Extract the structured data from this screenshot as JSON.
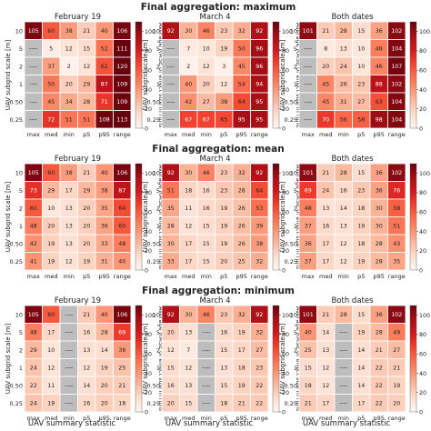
{
  "row_titles": [
    "Final aggregation: maximum",
    "Final aggregation: mean",
    "Final aggregation: minimum"
  ],
  "panel_titles": [
    "February 19",
    "March 4",
    "Both dates"
  ],
  "y_axis_label": "UAV subgrid scale [m]",
  "x_axis_label": "UAV summary statistic",
  "colorbar_label": "Average RMSE of effect size in runs",
  "colorbar_ticks": [
    "0",
    "20",
    "40",
    "60",
    "80",
    "100"
  ],
  "colors": {
    "low": "#fff5f0",
    "high": "#67000d",
    "missing": "#bdbdbd"
  },
  "chart_data": {
    "type": "heatmap",
    "x": [
      "max",
      "med",
      "min",
      "p5",
      "p95",
      "range"
    ],
    "y": [
      "10",
      "5",
      "2",
      "1",
      "0.50",
      "0.25"
    ],
    "vmin": 0,
    "vmax": 110,
    "missing_label": "----",
    "panels": [
      {
        "row": "maximum",
        "panel": "February 19",
        "values": [
          [
            105,
            60,
            38,
            21,
            40,
            106
          ],
          [
            null,
            5,
            12,
            15,
            52,
            111
          ],
          [
            null,
            37,
            2,
            12,
            62,
            120
          ],
          [
            null,
            50,
            20,
            29,
            87,
            109
          ],
          [
            null,
            45,
            34,
            28,
            71,
            109
          ],
          [
            null,
            72,
            51,
            51,
            108,
            113
          ]
        ]
      },
      {
        "row": "maximum",
        "panel": "March 4",
        "values": [
          [
            92,
            30,
            46,
            23,
            32,
            92
          ],
          [
            null,
            7,
            10,
            19,
            50,
            96
          ],
          [
            null,
            2,
            12,
            3,
            45,
            96
          ],
          [
            null,
            40,
            20,
            12,
            54,
            94
          ],
          [
            null,
            42,
            27,
            38,
            64,
            95
          ],
          [
            null,
            67,
            67,
            65,
            95,
            95
          ]
        ]
      },
      {
        "row": "maximum",
        "panel": "Both dates",
        "values": [
          [
            101,
            21,
            28,
            15,
            36,
            102
          ],
          [
            null,
            8,
            13,
            10,
            48,
            104
          ],
          [
            null,
            20,
            24,
            10,
            46,
            107
          ],
          [
            null,
            45,
            26,
            23,
            88,
            102
          ],
          [
            null,
            45,
            31,
            27,
            63,
            104
          ],
          [
            null,
            70,
            56,
            58,
            98,
            104
          ]
        ]
      },
      {
        "row": "mean",
        "panel": "February 19",
        "values": [
          [
            105,
            60,
            38,
            21,
            40,
            106
          ],
          [
            73,
            29,
            17,
            29,
            38,
            87
          ],
          [
            60,
            10,
            13,
            20,
            35,
            64
          ],
          [
            48,
            20,
            13,
            20,
            36,
            60
          ],
          [
            42,
            19,
            13,
            20,
            33,
            48
          ],
          [
            41,
            19,
            12,
            19,
            31,
            40
          ]
        ]
      },
      {
        "row": "mean",
        "panel": "March 4",
        "values": [
          [
            92,
            30,
            46,
            23,
            32,
            92
          ],
          [
            51,
            18,
            16,
            23,
            28,
            64
          ],
          [
            35,
            11,
            16,
            19,
            26,
            53
          ],
          [
            28,
            12,
            15,
            19,
            26,
            39
          ],
          [
            30,
            17,
            15,
            19,
            26,
            38
          ],
          [
            33,
            17,
            15,
            20,
            25,
            32
          ]
        ]
      },
      {
        "row": "mean",
        "panel": "Both dates",
        "values": [
          [
            101,
            21,
            28,
            15,
            36,
            102
          ],
          [
            69,
            24,
            16,
            23,
            36,
            76
          ],
          [
            48,
            13,
            14,
            18,
            30,
            58
          ],
          [
            37,
            16,
            13,
            19,
            30,
            51
          ],
          [
            36,
            17,
            12,
            18,
            28,
            43
          ],
          [
            37,
            17,
            12,
            19,
            28,
            35
          ]
        ]
      },
      {
        "row": "minimum",
        "panel": "February 19",
        "values": [
          [
            105,
            60,
            null,
            21,
            40,
            106
          ],
          [
            48,
            17,
            null,
            16,
            28,
            69
          ],
          [
            29,
            10,
            null,
            13,
            14,
            39
          ],
          [
            24,
            12,
            null,
            12,
            19,
            25
          ],
          [
            22,
            11,
            null,
            14,
            20,
            21
          ],
          [
            24,
            19,
            null,
            16,
            20,
            18
          ]
        ]
      },
      {
        "row": "minimum",
        "panel": "March 4",
        "values": [
          [
            92,
            30,
            46,
            23,
            32,
            92
          ],
          [
            20,
            13,
            null,
            16,
            19,
            32
          ],
          [
            12,
            7,
            null,
            15,
            17,
            27
          ],
          [
            15,
            12,
            null,
            13,
            18,
            23
          ],
          [
            16,
            13,
            null,
            15,
            19,
            22
          ],
          [
            20,
            15,
            null,
            18,
            21,
            22
          ]
        ]
      },
      {
        "row": "minimum",
        "panel": "Both dates",
        "values": [
          [
            101,
            21,
            28,
            15,
            36,
            102
          ],
          [
            40,
            14,
            null,
            19,
            28,
            49
          ],
          [
            25,
            13,
            null,
            14,
            21,
            27
          ],
          [
            15,
            12,
            null,
            14,
            22,
            21
          ],
          [
            18,
            12,
            null,
            14,
            22,
            19
          ],
          [
            21,
            17,
            null,
            17,
            22,
            20
          ]
        ]
      }
    ]
  }
}
